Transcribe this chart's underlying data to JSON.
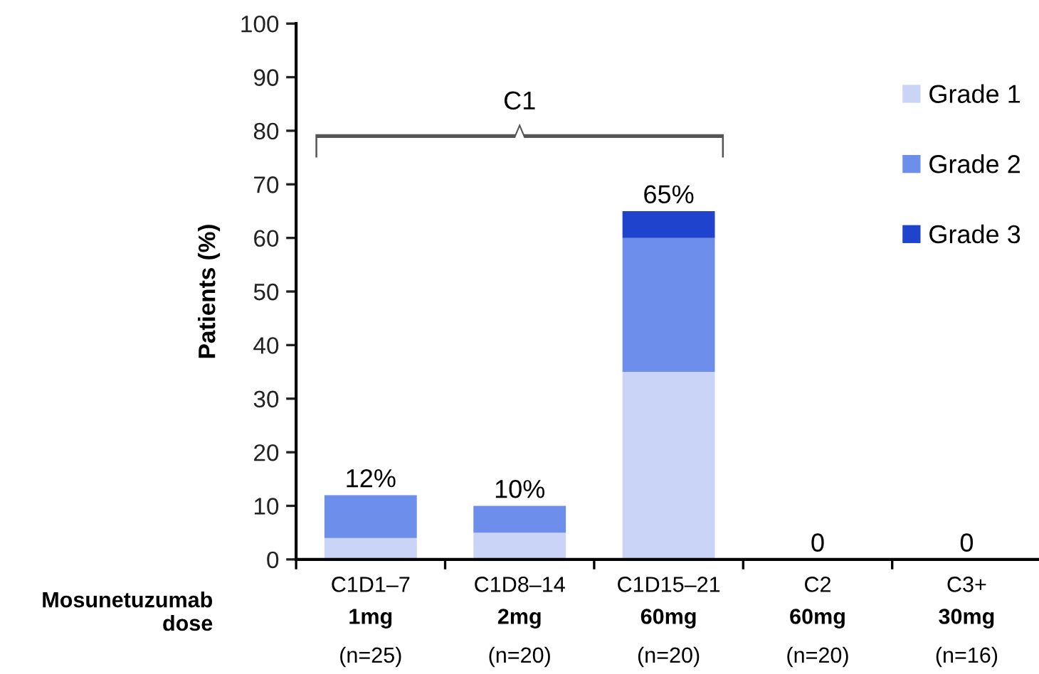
{
  "chart_data": {
    "type": "bar",
    "stacked": true,
    "categories": [
      "C1D1–7\n1mg\n(n=25)",
      "C1D8–14\n2mg\n(n=20)",
      "C1D15–21\n60mg\n(n=20)",
      "C2\n60mg\n(n=20)",
      "C3+\n30mg\n(n=16)"
    ],
    "series": [
      {
        "name": "Grade 1",
        "color": "#cad4f6",
        "values": [
          4,
          5,
          35,
          0,
          0
        ]
      },
      {
        "name": "Grade 2",
        "color": "#6e8eeb",
        "values": [
          8,
          5,
          25,
          0,
          0
        ]
      },
      {
        "name": "Grade 3",
        "color": "#1f43cc",
        "values": [
          0,
          0,
          5,
          0,
          0
        ]
      }
    ],
    "totals": [
      "12%",
      "10%",
      "65%",
      "0",
      "0"
    ],
    "xlabel": "Mosunetuzumab\ndose",
    "ylabel": "Patients (%)",
    "annotations": [
      "C1"
    ],
    "ylim": [
      0,
      100
    ],
    "yticks": [
      0,
      10,
      20,
      30,
      40,
      50,
      60,
      70,
      80,
      90,
      100
    ],
    "grid": false,
    "legend": "top right"
  }
}
